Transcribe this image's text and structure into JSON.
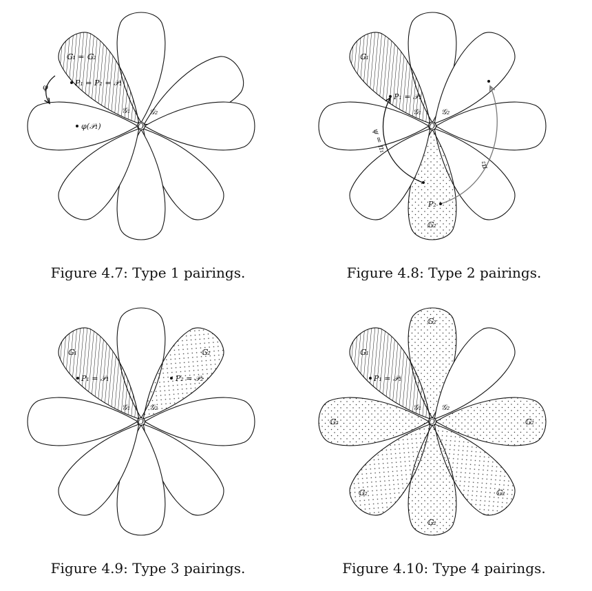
{
  "figures": [
    {
      "caption": "Figure 4.7: Type 1 pairings.",
      "labels": {
        "G1_eq_G2": "𝔾₁ = 𝔾₂",
        "P1_eq": "P₁ = P₂ = 𝒫₁",
        "calG1": "𝒢₁",
        "calG2": "𝒢₂",
        "phi": "φ",
        "phiP1": "φ(𝒫₁)",
        "origin": "O"
      }
    },
    {
      "caption": "Figure 4.8: Type 2 pairings.",
      "labels": {
        "G1": "𝔾₁",
        "P1_eq": "P₁ = 𝒫₁",
        "calG1": "𝒢₁",
        "calG2": "𝒢₂",
        "psi_eq_pi": "ψ = π₁",
        "pi2": "π₂",
        "P2": "P₂",
        "G2": "𝔾₂",
        "origin": "O"
      }
    },
    {
      "caption": "Figure 4.9: Type 3 pairings.",
      "labels": {
        "G1": "𝔾₁",
        "G2": "𝔾₂",
        "P1_eq": "P₁ = 𝒫₁",
        "P2_eq": "P₂ = 𝒫₂",
        "calG1": "𝒢₁",
        "calG2": "𝒢₂",
        "origin": "O"
      }
    },
    {
      "caption": "Figure 4.10: Type 4 pairings.",
      "labels": {
        "G1": "𝔾₁",
        "P1_eq": "P₁ = 𝒫₁",
        "calG1": "𝒢₁",
        "calG2": "𝒢₂",
        "G2": "𝔾₂",
        "origin": "O"
      }
    }
  ],
  "colors": {
    "stroke": "#111111",
    "grey_arrow": "#777777"
  }
}
